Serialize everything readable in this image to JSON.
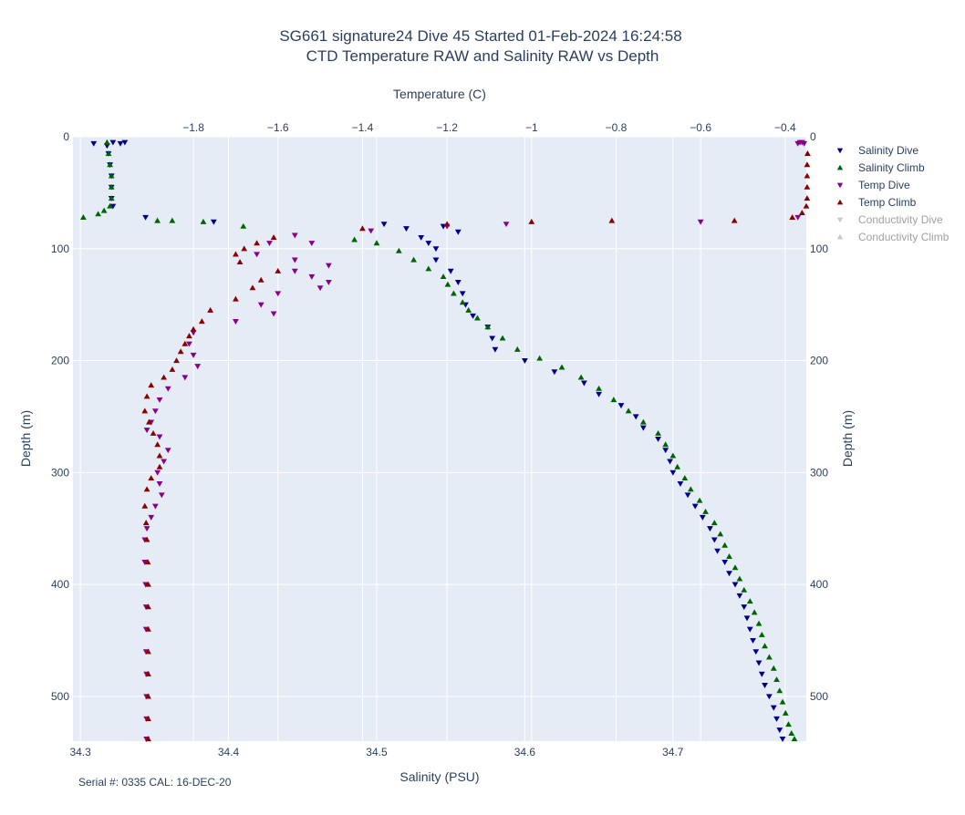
{
  "chart_data": {
    "type": "scatter",
    "title": "SG661 signature24 Dive 45 Started 01-Feb-2024 16:24:58",
    "subtitle": "CTD Temperature RAW and Salinity RAW vs Depth",
    "x_bottom_label": "Salinity (PSU)",
    "x_top_label": "Temperature (C)",
    "y_label_left": "Depth (m)",
    "y_label_right": "Depth (m)",
    "footnote": "Serial #: 0335  CAL: 16-DEC-20",
    "x_bottom_range": [
      34.295,
      34.79
    ],
    "x_top_range": [
      -2.085,
      -0.35
    ],
    "y_range": [
      540,
      0
    ],
    "x_bottom_ticks": [
      "34.3",
      "34.4",
      "34.5",
      "34.6",
      "34.7"
    ],
    "x_top_ticks": [
      "−1.8",
      "−1.6",
      "−1.4",
      "−1.2",
      "−1",
      "−0.8",
      "−0.6",
      "−0.4"
    ],
    "y_ticks": [
      "0",
      "100",
      "200",
      "300",
      "400",
      "500"
    ],
    "grid": true,
    "legend_position": "top-right",
    "series": [
      {
        "name": "Salinity Dive",
        "axis": "salinity",
        "marker": "triangle-down",
        "color": "#00008b",
        "visible": true,
        "points": [
          [
            34.309,
            6
          ],
          [
            34.322,
            5
          ],
          [
            34.327,
            6
          ],
          [
            34.33,
            5
          ],
          [
            34.318,
            8
          ],
          [
            34.319,
            15
          ],
          [
            34.32,
            25
          ],
          [
            34.321,
            35
          ],
          [
            34.321,
            45
          ],
          [
            34.321,
            55
          ],
          [
            34.322,
            62
          ],
          [
            34.344,
            72
          ],
          [
            34.39,
            76
          ],
          [
            34.505,
            78
          ],
          [
            34.52,
            82
          ],
          [
            34.545,
            80
          ],
          [
            34.555,
            85
          ],
          [
            34.53,
            90
          ],
          [
            34.535,
            95
          ],
          [
            34.54,
            100
          ],
          [
            34.54,
            110
          ],
          [
            34.55,
            120
          ],
          [
            34.555,
            130
          ],
          [
            34.558,
            140
          ],
          [
            34.56,
            150
          ],
          [
            34.565,
            160
          ],
          [
            34.575,
            170
          ],
          [
            34.578,
            180
          ],
          [
            34.58,
            190
          ],
          [
            34.6,
            200
          ],
          [
            34.62,
            210
          ],
          [
            34.64,
            220
          ],
          [
            34.65,
            230
          ],
          [
            34.665,
            240
          ],
          [
            34.675,
            250
          ],
          [
            34.68,
            260
          ],
          [
            34.69,
            270
          ],
          [
            34.695,
            280
          ],
          [
            34.698,
            290
          ],
          [
            34.7,
            300
          ],
          [
            34.705,
            310
          ],
          [
            34.71,
            320
          ],
          [
            34.715,
            330
          ],
          [
            34.72,
            340
          ],
          [
            34.725,
            350
          ],
          [
            34.728,
            360
          ],
          [
            34.73,
            370
          ],
          [
            34.735,
            380
          ],
          [
            34.738,
            390
          ],
          [
            34.742,
            400
          ],
          [
            34.745,
            410
          ],
          [
            34.748,
            420
          ],
          [
            34.75,
            430
          ],
          [
            34.752,
            440
          ],
          [
            34.754,
            450
          ],
          [
            34.756,
            460
          ],
          [
            34.758,
            470
          ],
          [
            34.76,
            480
          ],
          [
            34.762,
            490
          ],
          [
            34.765,
            500
          ],
          [
            34.768,
            510
          ],
          [
            34.77,
            520
          ],
          [
            34.772,
            530
          ],
          [
            34.774,
            538
          ]
        ]
      },
      {
        "name": "Salinity Climb",
        "axis": "salinity",
        "marker": "triangle-up",
        "color": "#006400",
        "visible": true,
        "points": [
          [
            34.318,
            5
          ],
          [
            34.319,
            15
          ],
          [
            34.32,
            25
          ],
          [
            34.321,
            35
          ],
          [
            34.321,
            45
          ],
          [
            34.321,
            55
          ],
          [
            34.32,
            62
          ],
          [
            34.316,
            66
          ],
          [
            34.312,
            69
          ],
          [
            34.302,
            72
          ],
          [
            34.352,
            75
          ],
          [
            34.362,
            75
          ],
          [
            34.383,
            76
          ],
          [
            34.41,
            80
          ],
          [
            34.485,
            92
          ],
          [
            34.5,
            95
          ],
          [
            34.515,
            102
          ],
          [
            34.525,
            110
          ],
          [
            34.535,
            118
          ],
          [
            34.545,
            125
          ],
          [
            34.548,
            132
          ],
          [
            34.552,
            140
          ],
          [
            34.558,
            148
          ],
          [
            34.562,
            155
          ],
          [
            34.568,
            162
          ],
          [
            34.575,
            170
          ],
          [
            34.585,
            180
          ],
          [
            34.595,
            190
          ],
          [
            34.61,
            198
          ],
          [
            34.625,
            206
          ],
          [
            34.638,
            215
          ],
          [
            34.65,
            225
          ],
          [
            34.66,
            235
          ],
          [
            34.67,
            245
          ],
          [
            34.68,
            255
          ],
          [
            34.69,
            265
          ],
          [
            34.695,
            275
          ],
          [
            34.7,
            285
          ],
          [
            34.703,
            295
          ],
          [
            34.708,
            305
          ],
          [
            34.712,
            315
          ],
          [
            34.718,
            325
          ],
          [
            34.722,
            335
          ],
          [
            34.728,
            345
          ],
          [
            34.732,
            355
          ],
          [
            34.735,
            365
          ],
          [
            34.738,
            375
          ],
          [
            34.742,
            385
          ],
          [
            34.745,
            395
          ],
          [
            34.748,
            405
          ],
          [
            34.752,
            415
          ],
          [
            34.755,
            425
          ],
          [
            34.758,
            435
          ],
          [
            34.76,
            445
          ],
          [
            34.762,
            455
          ],
          [
            34.765,
            465
          ],
          [
            34.768,
            475
          ],
          [
            34.77,
            485
          ],
          [
            34.772,
            495
          ],
          [
            34.774,
            505
          ],
          [
            34.776,
            515
          ],
          [
            34.778,
            525
          ],
          [
            34.78,
            533
          ],
          [
            34.782,
            538
          ]
        ]
      },
      {
        "name": "Temp Dive",
        "axis": "temperature",
        "marker": "triangle-down",
        "color": "#8b008b",
        "visible": true,
        "points": [
          [
            -0.37,
            6
          ],
          [
            -0.365,
            5
          ],
          [
            -0.355,
            6
          ],
          [
            -0.36,
            5
          ],
          [
            -0.37,
            72
          ],
          [
            -0.6,
            76
          ],
          [
            -1.06,
            78
          ],
          [
            -1.2,
            80
          ],
          [
            -1.38,
            84
          ],
          [
            -1.56,
            88
          ],
          [
            -1.52,
            95
          ],
          [
            -1.62,
            95
          ],
          [
            -1.65,
            105
          ],
          [
            -1.56,
            110
          ],
          [
            -1.48,
            115
          ],
          [
            -1.56,
            120
          ],
          [
            -1.52,
            125
          ],
          [
            -1.48,
            130
          ],
          [
            -1.5,
            135
          ],
          [
            -1.6,
            140
          ],
          [
            -1.64,
            150
          ],
          [
            -1.61,
            158
          ],
          [
            -1.7,
            165
          ],
          [
            -1.8,
            175
          ],
          [
            -1.81,
            185
          ],
          [
            -1.8,
            195
          ],
          [
            -1.79,
            205
          ],
          [
            -1.82,
            215
          ],
          [
            -1.86,
            225
          ],
          [
            -1.88,
            235
          ],
          [
            -1.89,
            245
          ],
          [
            -1.9,
            255
          ],
          [
            -1.91,
            262
          ],
          [
            -1.88,
            268
          ],
          [
            -1.86,
            280
          ],
          [
            -1.87,
            290
          ],
          [
            -1.885,
            300
          ],
          [
            -1.88,
            310
          ],
          [
            -1.875,
            320
          ],
          [
            -1.89,
            330
          ],
          [
            -1.9,
            340
          ],
          [
            -1.91,
            350
          ],
          [
            -1.915,
            360
          ],
          [
            -1.915,
            380
          ],
          [
            -1.913,
            400
          ],
          [
            -1.912,
            420
          ],
          [
            -1.912,
            440
          ],
          [
            -1.912,
            460
          ],
          [
            -1.911,
            480
          ],
          [
            -1.911,
            500
          ],
          [
            -1.911,
            520
          ],
          [
            -1.911,
            538
          ]
        ]
      },
      {
        "name": "Temp Climb",
        "axis": "temperature",
        "marker": "triangle-up",
        "color": "#8b0000",
        "visible": true,
        "points": [
          [
            -0.345,
            6
          ],
          [
            -0.347,
            15
          ],
          [
            -0.348,
            25
          ],
          [
            -0.348,
            35
          ],
          [
            -0.348,
            45
          ],
          [
            -0.348,
            55
          ],
          [
            -0.35,
            62
          ],
          [
            -0.36,
            68
          ],
          [
            -0.383,
            72
          ],
          [
            -0.52,
            75
          ],
          [
            -0.81,
            75
          ],
          [
            -1.0,
            76
          ],
          [
            -1.2,
            78
          ],
          [
            -1.4,
            82
          ],
          [
            -1.61,
            90
          ],
          [
            -1.65,
            95
          ],
          [
            -1.68,
            100
          ],
          [
            -1.7,
            105
          ],
          [
            -1.69,
            112
          ],
          [
            -1.6,
            120
          ],
          [
            -1.64,
            128
          ],
          [
            -1.66,
            135
          ],
          [
            -1.7,
            145
          ],
          [
            -1.76,
            155
          ],
          [
            -1.78,
            165
          ],
          [
            -1.8,
            172
          ],
          [
            -1.81,
            178
          ],
          [
            -1.82,
            185
          ],
          [
            -1.83,
            192
          ],
          [
            -1.84,
            200
          ],
          [
            -1.85,
            208
          ],
          [
            -1.87,
            215
          ],
          [
            -1.9,
            222
          ],
          [
            -1.91,
            232
          ],
          [
            -1.915,
            245
          ],
          [
            -1.905,
            255
          ],
          [
            -1.895,
            265
          ],
          [
            -1.885,
            275
          ],
          [
            -1.88,
            285
          ],
          [
            -1.88,
            295
          ],
          [
            -1.9,
            305
          ],
          [
            -1.91,
            315
          ],
          [
            -1.915,
            330
          ],
          [
            -1.912,
            345
          ],
          [
            -1.91,
            360
          ],
          [
            -1.908,
            380
          ],
          [
            -1.907,
            400
          ],
          [
            -1.907,
            420
          ],
          [
            -1.907,
            440
          ],
          [
            -1.907,
            460
          ],
          [
            -1.907,
            480
          ],
          [
            -1.907,
            500
          ],
          [
            -1.907,
            520
          ],
          [
            -1.907,
            538
          ]
        ]
      },
      {
        "name": "Conductivity Dive",
        "axis": "none",
        "marker": "triangle-down",
        "color": "#c8c8c8",
        "visible": false,
        "points": []
      },
      {
        "name": "Conductivity Climb",
        "axis": "none",
        "marker": "triangle-up",
        "color": "#c8c8c8",
        "visible": false,
        "points": []
      }
    ]
  }
}
